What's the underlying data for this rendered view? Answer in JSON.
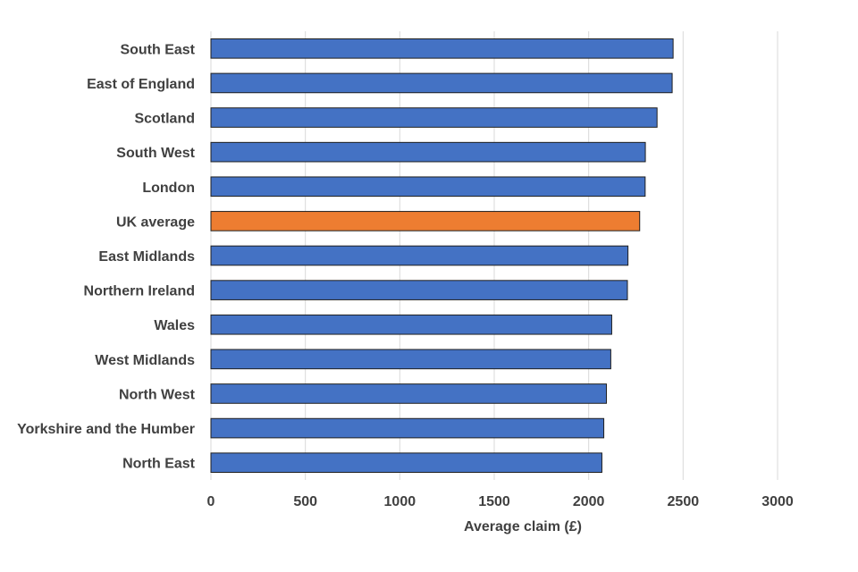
{
  "chart_data": {
    "type": "bar",
    "orientation": "horizontal",
    "title": "",
    "xlabel": "Average claim (£)",
    "ylabel": "",
    "xlim": [
      0,
      3000
    ],
    "ticks": [
      0,
      500,
      1000,
      1500,
      2000,
      2500,
      3000
    ],
    "grid": true,
    "categories": [
      "South East",
      "East of England",
      "Scotland",
      "South West",
      "London",
      "UK average",
      "East Midlands",
      "Northern Ireland",
      "Wales",
      "West Midlands",
      "North West",
      "Yorkshire and the Humber",
      "North East"
    ],
    "values": [
      2447,
      2442,
      2362,
      2300,
      2299,
      2270,
      2208,
      2205,
      2122,
      2117,
      2094,
      2080,
      2070
    ],
    "highlight": "UK average",
    "colors": {
      "default": "#4472c4",
      "highlight": "#ed7d31"
    }
  }
}
